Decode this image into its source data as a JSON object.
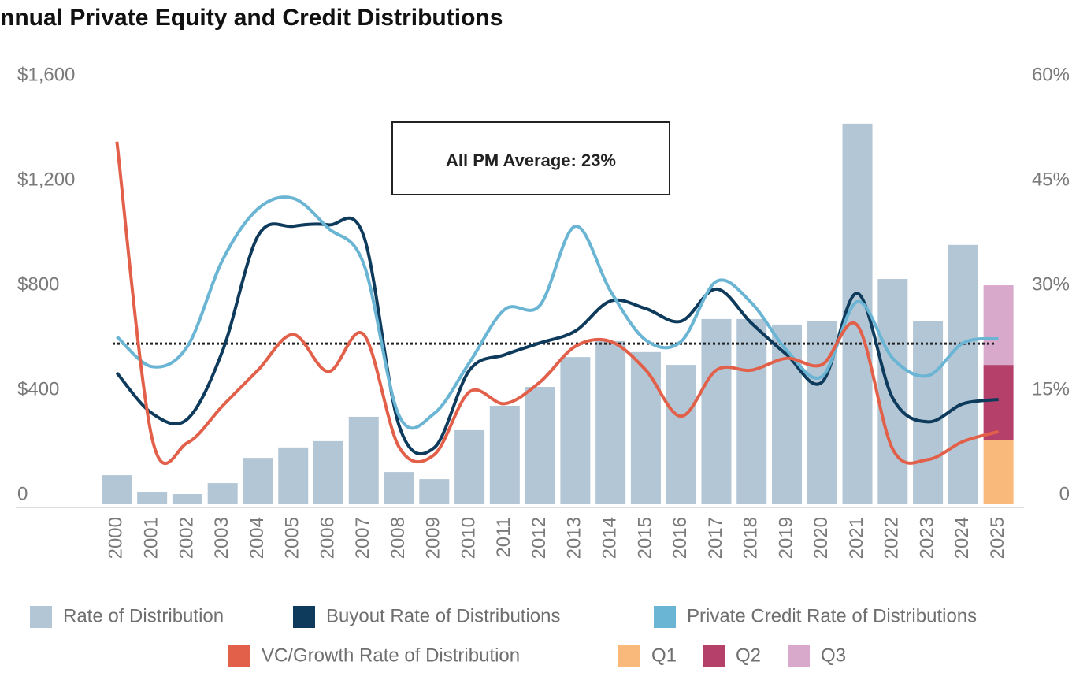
{
  "chart_data": {
    "type": "bar",
    "title": "nnual Private Equity and Credit Distributions",
    "categories": [
      "2000",
      "2001",
      "2002",
      "2003",
      "2004",
      "2005",
      "2006",
      "2007",
      "2008",
      "2009",
      "2010",
      "2011",
      "2012",
      "2013",
      "2014",
      "2015",
      "2016",
      "2017",
      "2018",
      "2019",
      "2020",
      "2021",
      "2022",
      "2023",
      "2024",
      "2025"
    ],
    "series": [
      {
        "name": "Rate of Distribution",
        "type": "bar",
        "color": "#b3c6d6",
        "values": [
          111,
          45,
          39,
          81,
          177,
          217,
          241,
          334,
          123,
          96,
          283,
          376,
          448,
          562,
          623,
          581,
          532,
          707,
          707,
          686,
          698,
          1453,
          860,
          698,
          990,
          null
        ]
      },
      {
        "name": "Buyout Rate of Distributions",
        "type": "line",
        "axis": "y2",
        "color": "#0e3a5c",
        "values": [
          18.8,
          13.0,
          12.2,
          22,
          38.4,
          39.8,
          40,
          38.4,
          11.3,
          8.1,
          19.2,
          21.4,
          23.1,
          24.8,
          29.1,
          28,
          26.2,
          30.8,
          25.9,
          21.4,
          17.5,
          30.2,
          15.2,
          11.8,
          14.4,
          15.0
        ]
      },
      {
        "name": "Private Credit Rate of Distributions",
        "type": "line",
        "axis": "y2",
        "color": "#6ab4d4",
        "values": [
          24,
          19.7,
          22.6,
          35,
          42.3,
          43.8,
          39.5,
          34.4,
          12.7,
          13,
          20.3,
          27.9,
          28.5,
          39.8,
          30.5,
          23.5,
          23.3,
          31.9,
          28.8,
          22,
          18.3,
          29,
          20.9,
          18.4,
          23.1,
          23.7
        ]
      },
      {
        "name": "VC/Growth Rate of Distribution",
        "type": "line",
        "axis": "y2",
        "color": "#e2604a",
        "values": [
          51.9,
          9.4,
          8.8,
          14.1,
          19.2,
          24.3,
          19,
          24.3,
          8.2,
          7.1,
          16.1,
          14.4,
          17.5,
          22.6,
          23.3,
          19.2,
          12.6,
          19.2,
          19.2,
          20.9,
          20,
          25.6,
          7.9,
          6.4,
          9,
          10.4
        ]
      },
      {
        "name": "Q1",
        "type": "bar",
        "color": "#f9b97a",
        "values": [
          null,
          null,
          null,
          null,
          null,
          null,
          null,
          null,
          null,
          null,
          null,
          null,
          null,
          null,
          null,
          null,
          null,
          null,
          null,
          null,
          null,
          null,
          null,
          null,
          null,
          244
        ]
      },
      {
        "name": "Q2",
        "type": "bar",
        "color": "#b5416b",
        "values": [
          null,
          null,
          null,
          null,
          null,
          null,
          null,
          null,
          null,
          null,
          null,
          null,
          null,
          null,
          null,
          null,
          null,
          null,
          null,
          null,
          null,
          null,
          null,
          null,
          null,
          288
        ]
      },
      {
        "name": "Q3",
        "type": "bar",
        "color": "#d9a9cb",
        "values": [
          null,
          null,
          null,
          null,
          null,
          null,
          null,
          null,
          null,
          null,
          null,
          null,
          null,
          null,
          null,
          null,
          null,
          null,
          null,
          null,
          null,
          null,
          null,
          null,
          null,
          304
        ]
      }
    ],
    "ylim": [
      0,
      1600
    ],
    "yticks": [
      0,
      {
        "value": 400,
        "label": "$400"
      },
      {
        "value": 800,
        "label": "$800"
      },
      {
        "value": 1200,
        "label": "$1,200"
      },
      {
        "value": 1600,
        "label": "$1,600"
      }
    ],
    "y2lim": [
      0,
      60
    ],
    "y2ticks": [
      0,
      {
        "value": 15,
        "label": "15%"
      },
      {
        "value": 30,
        "label": "30%"
      },
      {
        "value": 45,
        "label": "45%"
      },
      {
        "value": 60,
        "label": "60%"
      }
    ],
    "average": {
      "value": 23,
      "label": "All PM Average: 23%"
    }
  }
}
